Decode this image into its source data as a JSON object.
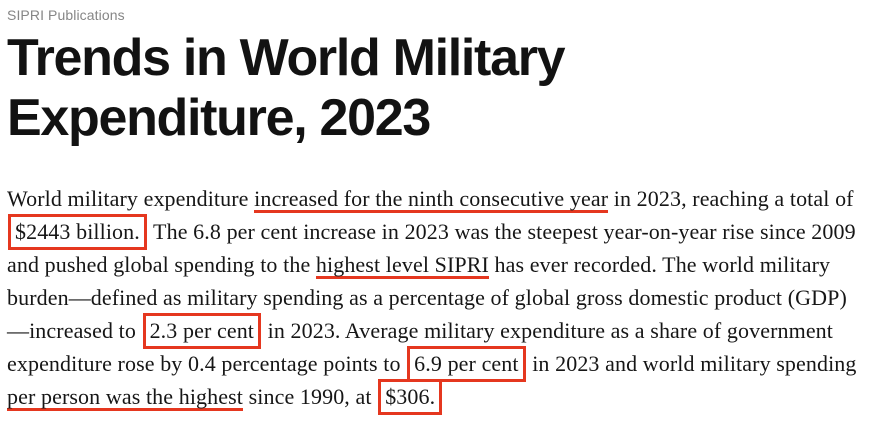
{
  "header": {
    "eyebrow": "SIPRI Publications",
    "title": "Trends in World Military Expenditure, 2023",
    "title_lines": [
      "Trends in World Military",
      "Expenditure, 2023"
    ]
  },
  "colors": {
    "background": "#ffffff",
    "eyebrow_gray": "#868686",
    "title_black": "#121212",
    "body_text": "#161616",
    "annotation_red": "#e5371f"
  },
  "paragraph": {
    "segments": [
      {
        "text": "World military expenditure ",
        "style": "plain"
      },
      {
        "text": "increased for the ninth consecutive year",
        "style": "underline"
      },
      {
        "text": " in 2023, reaching a total of ",
        "style": "plain"
      },
      {
        "text": "$2443 billion.",
        "style": "box"
      },
      {
        "text": " The 6.8 per cent increase in 2023 was the steepest year-on-year rise since 2009 and pushed global spending to the ",
        "style": "plain"
      },
      {
        "text": "highest level SIPRI",
        "style": "underline"
      },
      {
        "text": " has ever recorded. The world military burden—defined as military spending as a percentage of global gross domestic product (GDP)—increased to ",
        "style": "plain"
      },
      {
        "text": "2.3 per cent",
        "style": "box"
      },
      {
        "text": " in 2023. Average military expenditure as a share of government expenditure rose by 0.4 percentage points to ",
        "style": "plain"
      },
      {
        "text": "6.9 per cent",
        "style": "box"
      },
      {
        "text": " in 2023 and world military spending ",
        "style": "plain"
      },
      {
        "text": "per person was the highest",
        "style": "underline"
      },
      {
        "text": " since 1990, at ",
        "style": "plain"
      },
      {
        "text": "$306.",
        "style": "box"
      }
    ]
  }
}
